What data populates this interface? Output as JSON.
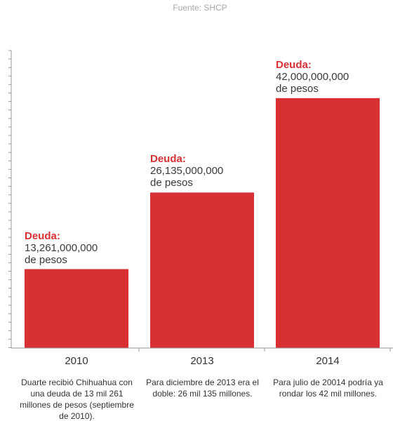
{
  "source": "Fuente: SHCP",
  "colors": {
    "bar": "#d93034",
    "accent_text": "#d93034",
    "axis": "#999999"
  },
  "chart_data": {
    "type": "bar",
    "categories": [
      "2010",
      "2013",
      "2014"
    ],
    "values": [
      13261000000,
      26135000000,
      42000000000
    ],
    "title": "",
    "xlabel": "",
    "ylabel": "",
    "ylim": [
      0,
      50000000000
    ],
    "grid": false,
    "legend": "none",
    "bar_labels": [
      {
        "title": "Deuda:",
        "amount": "13,261,000,000",
        "unit": "de pesos"
      },
      {
        "title": "Deuda:",
        "amount": "26,135,000,000",
        "unit": "de pesos"
      },
      {
        "title": "Deuda:",
        "amount": "42,000,000,000",
        "unit": "de pesos"
      }
    ],
    "notes": [
      "Duarte recibió Chihuahua con una deuda de 13 mil 261 millones de pesos (septiembre de 2010).",
      "Para diciembre de 2013 era el doble: 26 mil 135 millones.",
      "Para julio de 20014 podría ya rondar los 42 mil millones."
    ]
  }
}
